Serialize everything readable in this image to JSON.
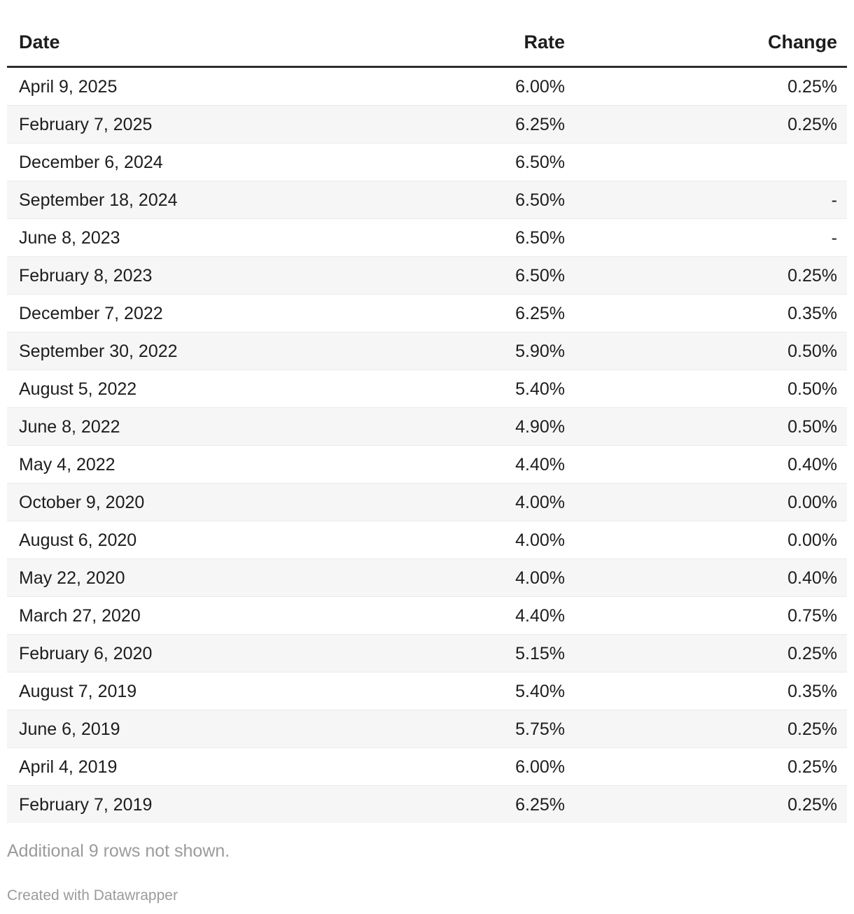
{
  "chart_data": {
    "type": "table",
    "columns": [
      "Date",
      "Rate",
      "Change"
    ],
    "rows": [
      [
        "April 9, 2025",
        "6.00%",
        "0.25%"
      ],
      [
        "February 7, 2025",
        "6.25%",
        "0.25%"
      ],
      [
        "December 6, 2024",
        "6.50%",
        ""
      ],
      [
        "September 18, 2024",
        "6.50%",
        "-"
      ],
      [
        "June 8, 2023",
        "6.50%",
        "-"
      ],
      [
        "February 8, 2023",
        "6.50%",
        "0.25%"
      ],
      [
        "December 7, 2022",
        "6.25%",
        "0.35%"
      ],
      [
        "September 30, 2022",
        "5.90%",
        "0.50%"
      ],
      [
        "August 5, 2022",
        "5.40%",
        "0.50%"
      ],
      [
        "June 8, 2022",
        "4.90%",
        "0.50%"
      ],
      [
        "May 4, 2022",
        "4.40%",
        "0.40%"
      ],
      [
        "October 9, 2020",
        "4.00%",
        "0.00%"
      ],
      [
        "August 6, 2020",
        "4.00%",
        "0.00%"
      ],
      [
        "May 22, 2020",
        "4.00%",
        "0.40%"
      ],
      [
        "March 27, 2020",
        "4.40%",
        "0.75%"
      ],
      [
        "February 6, 2020",
        "5.15%",
        "0.25%"
      ],
      [
        "August 7, 2019",
        "5.40%",
        "0.35%"
      ],
      [
        "June 6, 2019",
        "5.75%",
        "0.25%"
      ],
      [
        "April 4, 2019",
        "6.00%",
        "0.25%"
      ],
      [
        "February 7, 2019",
        "6.25%",
        "0.25%"
      ]
    ],
    "layout_hints": {
      "striped_rows": true,
      "stripe_on": "even",
      "date_align": "left",
      "rate_align": "right",
      "change_align": "right"
    }
  },
  "footer": {
    "note": "Additional 9 rows not shown.",
    "attribution": "Created with Datawrapper"
  },
  "colors": {
    "text": "#1d1d1d",
    "muted_text": "#9b9b9b",
    "header_border": "#2e2e2e",
    "stripe": "#f6f6f6",
    "row_border": "#ebebeb",
    "background": "#ffffff"
  }
}
